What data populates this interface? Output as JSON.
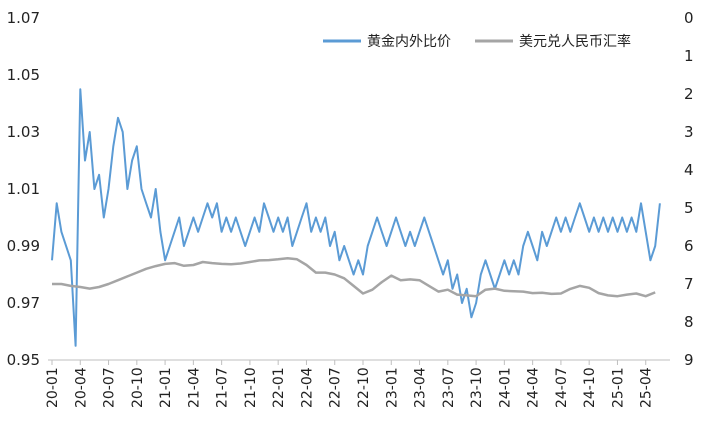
{
  "chart_data": {
    "type": "line",
    "title": "",
    "xlabel": "",
    "ylabel_left": "",
    "ylabel_right": "",
    "grid": false,
    "legend_position": "top-right",
    "x_ticks": [
      "20-01",
      "20-04",
      "20-07",
      "20-10",
      "21-01",
      "21-04",
      "21-07",
      "21-10",
      "22-01",
      "22-04",
      "22-07",
      "22-10",
      "23-01",
      "23-04",
      "23-07",
      "23-10",
      "24-01",
      "24-04",
      "24-07",
      "24-10",
      "25-01",
      "25-04"
    ],
    "y_left": {
      "min": 0.95,
      "max": 1.07,
      "ticks": [
        "0.95",
        "0.97",
        "0.99",
        "1.01",
        "1.03",
        "1.05",
        "1.07"
      ]
    },
    "y_right": {
      "min": 0,
      "max": 9,
      "inverted": true,
      "ticks": [
        "0",
        "1",
        "2",
        "3",
        "4",
        "5",
        "6",
        "7",
        "8",
        "9"
      ]
    },
    "series": [
      {
        "name": "黄金内外比价",
        "axis": "left",
        "color": "#5b9bd5",
        "points": [
          [
            "20-01",
            0.985
          ],
          [
            "20-01.5",
            1.005
          ],
          [
            "20-02",
            0.995
          ],
          [
            "20-03",
            0.985
          ],
          [
            "20-03.5",
            0.955
          ],
          [
            "20-04",
            1.045
          ],
          [
            "20-04.5",
            1.02
          ],
          [
            "20-05",
            1.03
          ],
          [
            "20-05.5",
            1.01
          ],
          [
            "20-06",
            1.015
          ],
          [
            "20-06.5",
            1.0
          ],
          [
            "20-07",
            1.01
          ],
          [
            "20-07.5",
            1.025
          ],
          [
            "20-08",
            1.035
          ],
          [
            "20-08.5",
            1.03
          ],
          [
            "20-09",
            1.01
          ],
          [
            "20-09.5",
            1.02
          ],
          [
            "20-10",
            1.025
          ],
          [
            "20-10.5",
            1.01
          ],
          [
            "20-11",
            1.005
          ],
          [
            "20-11.5",
            1.0
          ],
          [
            "20-12",
            1.01
          ],
          [
            "20-12.5",
            0.995
          ],
          [
            "21-01",
            0.985
          ],
          [
            "21-01.5",
            0.99
          ],
          [
            "21-02",
            0.995
          ],
          [
            "21-02.5",
            1.0
          ],
          [
            "21-03",
            0.99
          ],
          [
            "21-03.5",
            0.995
          ],
          [
            "21-04",
            1.0
          ],
          [
            "21-04.5",
            0.995
          ],
          [
            "21-05",
            1.0
          ],
          [
            "21-05.5",
            1.005
          ],
          [
            "21-06",
            1.0
          ],
          [
            "21-06.5",
            1.005
          ],
          [
            "21-07",
            0.995
          ],
          [
            "21-07.5",
            1.0
          ],
          [
            "21-08",
            0.995
          ],
          [
            "21-08.5",
            1.0
          ],
          [
            "21-09",
            0.995
          ],
          [
            "21-09.5",
            0.99
          ],
          [
            "21-10",
            0.995
          ],
          [
            "21-10.5",
            1.0
          ],
          [
            "21-11",
            0.995
          ],
          [
            "21-11.5",
            1.005
          ],
          [
            "21-12",
            1.0
          ],
          [
            "21-12.5",
            0.995
          ],
          [
            "22-01",
            1.0
          ],
          [
            "22-01.5",
            0.995
          ],
          [
            "22-02",
            1.0
          ],
          [
            "22-02.5",
            0.99
          ],
          [
            "22-03",
            0.995
          ],
          [
            "22-03.5",
            1.0
          ],
          [
            "22-04",
            1.005
          ],
          [
            "22-04.5",
            0.995
          ],
          [
            "22-05",
            1.0
          ],
          [
            "22-05.5",
            0.995
          ],
          [
            "22-06",
            1.0
          ],
          [
            "22-06.5",
            0.99
          ],
          [
            "22-07",
            0.995
          ],
          [
            "22-07.5",
            0.985
          ],
          [
            "22-08",
            0.99
          ],
          [
            "22-08.5",
            0.985
          ],
          [
            "22-09",
            0.98
          ],
          [
            "22-09.5",
            0.985
          ],
          [
            "22-10",
            0.98
          ],
          [
            "22-10.5",
            0.99
          ],
          [
            "22-11",
            0.995
          ],
          [
            "22-11.5",
            1.0
          ],
          [
            "22-12",
            0.995
          ],
          [
            "22-12.5",
            0.99
          ],
          [
            "23-01",
            0.995
          ],
          [
            "23-01.5",
            1.0
          ],
          [
            "23-02",
            0.995
          ],
          [
            "23-02.5",
            0.99
          ],
          [
            "23-03",
            0.995
          ],
          [
            "23-03.5",
            0.99
          ],
          [
            "23-04",
            0.995
          ],
          [
            "23-04.5",
            1.0
          ],
          [
            "23-05",
            0.995
          ],
          [
            "23-05.5",
            0.99
          ],
          [
            "23-06",
            0.985
          ],
          [
            "23-06.5",
            0.98
          ],
          [
            "23-07",
            0.985
          ],
          [
            "23-07.5",
            0.975
          ],
          [
            "23-08",
            0.98
          ],
          [
            "23-08.5",
            0.97
          ],
          [
            "23-09",
            0.975
          ],
          [
            "23-09.5",
            0.965
          ],
          [
            "23-10",
            0.97
          ],
          [
            "23-10.5",
            0.98
          ],
          [
            "23-11",
            0.985
          ],
          [
            "23-11.5",
            0.98
          ],
          [
            "23-12",
            0.975
          ],
          [
            "23-12.5",
            0.98
          ],
          [
            "24-01",
            0.985
          ],
          [
            "24-01.5",
            0.98
          ],
          [
            "24-02",
            0.985
          ],
          [
            "24-02.5",
            0.98
          ],
          [
            "24-03",
            0.99
          ],
          [
            "24-03.5",
            0.995
          ],
          [
            "24-04",
            0.99
          ],
          [
            "24-04.5",
            0.985
          ],
          [
            "24-05",
            0.995
          ],
          [
            "24-05.5",
            0.99
          ],
          [
            "24-06",
            0.995
          ],
          [
            "24-06.5",
            1.0
          ],
          [
            "24-07",
            0.995
          ],
          [
            "24-07.5",
            1.0
          ],
          [
            "24-08",
            0.995
          ],
          [
            "24-08.5",
            1.0
          ],
          [
            "24-09",
            1.005
          ],
          [
            "24-09.5",
            1.0
          ],
          [
            "24-10",
            0.995
          ],
          [
            "24-10.5",
            1.0
          ],
          [
            "24-11",
            0.995
          ],
          [
            "24-11.5",
            1.0
          ],
          [
            "24-12",
            0.995
          ],
          [
            "24-12.5",
            1.0
          ],
          [
            "25-01",
            0.995
          ],
          [
            "25-01.5",
            1.0
          ],
          [
            "25-02",
            0.995
          ],
          [
            "25-02.5",
            1.0
          ],
          [
            "25-03",
            0.995
          ],
          [
            "25-03.5",
            1.005
          ],
          [
            "25-04",
            0.995
          ],
          [
            "25-04.5",
            0.985
          ],
          [
            "25-05",
            0.99
          ],
          [
            "25-05.5",
            1.005
          ]
        ]
      },
      {
        "name": "美元兑人民币汇率",
        "axis": "right",
        "color": "#a5a5a5",
        "points": [
          [
            "20-01",
            7.0
          ],
          [
            "20-02",
            7.0
          ],
          [
            "20-03",
            7.05
          ],
          [
            "20-04",
            7.08
          ],
          [
            "20-05",
            7.12
          ],
          [
            "20-06",
            7.08
          ],
          [
            "20-07",
            7.0
          ],
          [
            "20-08",
            6.9
          ],
          [
            "20-09",
            6.8
          ],
          [
            "20-10",
            6.7
          ],
          [
            "20-11",
            6.6
          ],
          [
            "20-12",
            6.53
          ],
          [
            "21-01",
            6.47
          ],
          [
            "21-02",
            6.45
          ],
          [
            "21-03",
            6.52
          ],
          [
            "21-04",
            6.5
          ],
          [
            "21-05",
            6.42
          ],
          [
            "21-06",
            6.45
          ],
          [
            "21-07",
            6.47
          ],
          [
            "21-08",
            6.48
          ],
          [
            "21-09",
            6.46
          ],
          [
            "21-10",
            6.42
          ],
          [
            "21-11",
            6.38
          ],
          [
            "21-12",
            6.37
          ],
          [
            "22-01",
            6.35
          ],
          [
            "22-02",
            6.32
          ],
          [
            "22-03",
            6.35
          ],
          [
            "22-04",
            6.5
          ],
          [
            "22-05",
            6.7
          ],
          [
            "22-06",
            6.7
          ],
          [
            "22-07",
            6.75
          ],
          [
            "22-08",
            6.85
          ],
          [
            "22-09",
            7.05
          ],
          [
            "22-10",
            7.25
          ],
          [
            "22-11",
            7.15
          ],
          [
            "22-12",
            6.95
          ],
          [
            "23-01",
            6.78
          ],
          [
            "23-02",
            6.9
          ],
          [
            "23-03",
            6.88
          ],
          [
            "23-04",
            6.9
          ],
          [
            "23-05",
            7.05
          ],
          [
            "23-06",
            7.2
          ],
          [
            "23-07",
            7.15
          ],
          [
            "23-08",
            7.28
          ],
          [
            "23-09",
            7.3
          ],
          [
            "23-10",
            7.32
          ],
          [
            "23-11",
            7.15
          ],
          [
            "23-12",
            7.12
          ],
          [
            "24-01",
            7.18
          ],
          [
            "24-02",
            7.19
          ],
          [
            "24-03",
            7.2
          ],
          [
            "24-04",
            7.24
          ],
          [
            "24-05",
            7.23
          ],
          [
            "24-06",
            7.26
          ],
          [
            "24-07",
            7.25
          ],
          [
            "24-08",
            7.13
          ],
          [
            "24-09",
            7.05
          ],
          [
            "24-10",
            7.1
          ],
          [
            "24-11",
            7.24
          ],
          [
            "24-12",
            7.3
          ],
          [
            "25-01",
            7.32
          ],
          [
            "25-02",
            7.28
          ],
          [
            "25-03",
            7.25
          ],
          [
            "25-04",
            7.32
          ],
          [
            "25-05",
            7.22
          ]
        ]
      }
    ]
  }
}
